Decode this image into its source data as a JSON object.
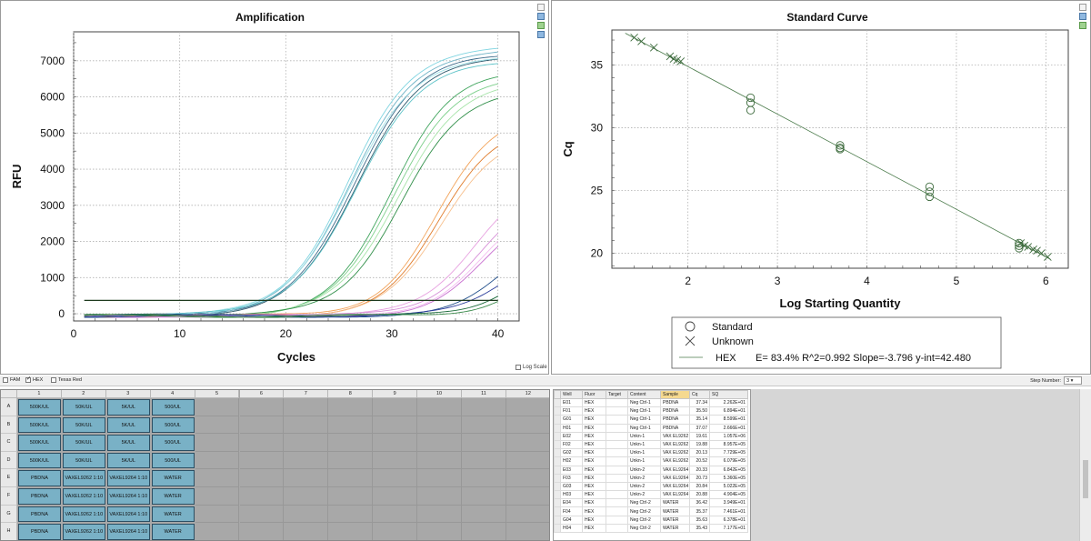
{
  "amplification": {
    "title": "Amplification",
    "xlabel": "Cycles",
    "ylabel": "RFU",
    "log_scale_label": "Log Scale",
    "threshold": 370
  },
  "standard_curve": {
    "title": "Standard Curve",
    "xlabel": "Log Starting Quantity",
    "ylabel": "Cq",
    "legend": {
      "standard": "Standard",
      "unknown": "Unknown",
      "fluor": "HEX",
      "stats": "E= 83.4% R^2=0.992 Slope=-3.796 y-int=42.480"
    }
  },
  "chart_data": [
    {
      "type": "line",
      "title": "Amplification",
      "xlabel": "Cycles",
      "ylabel": "RFU",
      "xlim": [
        0,
        42
      ],
      "ylim": [
        -200,
        7800
      ],
      "xticks": [
        0,
        10,
        20,
        30,
        40
      ],
      "yticks": [
        0,
        1000,
        2000,
        3000,
        4000,
        5000,
        6000,
        7000
      ],
      "grid": true,
      "x_range": [
        1,
        40
      ],
      "threshold": 370,
      "series": [
        {
          "color": "#3d6b8a",
          "plateau": 7300,
          "midpoint": 26.5,
          "slope": 0.32
        },
        {
          "color": "#2e5a6e",
          "plateau": 7250,
          "midpoint": 26.8,
          "slope": 0.32
        },
        {
          "color": "#6fb3c6",
          "plateau": 7400,
          "midpoint": 26.2,
          "slope": 0.33
        },
        {
          "color": "#7fd4e0",
          "plateau": 7450,
          "midpoint": 25.9,
          "slope": 0.34
        },
        {
          "color": "#9fe0e6",
          "plateau": 7150,
          "midpoint": 26.0,
          "slope": 0.33
        },
        {
          "color": "#5ec3c8",
          "plateau": 7050,
          "midpoint": 26.6,
          "slope": 0.32
        },
        {
          "color": "#3fa45c",
          "plateau": 6850,
          "midpoint": 30.0,
          "slope": 0.34
        },
        {
          "color": "#7ccf8a",
          "plateau": 6700,
          "midpoint": 30.3,
          "slope": 0.34
        },
        {
          "color": "#a6e3a8",
          "plateau": 6550,
          "midpoint": 30.6,
          "slope": 0.34
        },
        {
          "color": "#2f8e48",
          "plateau": 6250,
          "midpoint": 30.8,
          "slope": 0.35
        },
        {
          "color": "#f2a35a",
          "plateau": 5600,
          "midpoint": 34.2,
          "slope": 0.36
        },
        {
          "color": "#e07b2a",
          "plateau": 5300,
          "midpoint": 34.5,
          "slope": 0.36
        },
        {
          "color": "#f7c08e",
          "plateau": 5100,
          "midpoint": 34.8,
          "slope": 0.36
        },
        {
          "color": "#e7a0e0",
          "plateau": 3900,
          "midpoint": 37.8,
          "slope": 0.38
        },
        {
          "color": "#d78fd8",
          "plateau": 3500,
          "midpoint": 38.2,
          "slope": 0.38
        },
        {
          "color": "#f3bdf0",
          "plateau": 3200,
          "midpoint": 38.4,
          "slope": 0.38
        },
        {
          "color": "#c86fd0",
          "plateau": 3000,
          "midpoint": 38.6,
          "slope": 0.38
        },
        {
          "color": "#1f4e8a",
          "plateau": 2500,
          "midpoint": 40.8,
          "slope": 0.4
        },
        {
          "color": "#2a3c9a",
          "plateau": 2100,
          "midpoint": 41.1,
          "slope": 0.4
        },
        {
          "color": "#1b6b3a",
          "plateau": 1900,
          "midpoint": 42.0,
          "slope": 0.42
        },
        {
          "color": "#3a8a4a",
          "plateau": 1600,
          "midpoint": 42.3,
          "slope": 0.42
        }
      ]
    },
    {
      "type": "scatter",
      "title": "Standard Curve",
      "xlabel": "Log Starting Quantity",
      "ylabel": "Cq",
      "xlim": [
        1.15,
        6.25
      ],
      "ylim": [
        18.8,
        37.8
      ],
      "xticks": [
        2,
        3,
        4,
        5,
        6
      ],
      "yticks": [
        20,
        25,
        30,
        35
      ],
      "grid": true,
      "fit": {
        "slope": -3.796,
        "intercept": 42.48,
        "x_range": [
          1.3,
          6.05
        ]
      },
      "standards": [
        {
          "x": 2.7,
          "y": 32.4
        },
        {
          "x": 2.7,
          "y": 32.0
        },
        {
          "x": 2.7,
          "y": 31.4
        },
        {
          "x": 3.7,
          "y": 28.6
        },
        {
          "x": 3.7,
          "y": 28.4
        },
        {
          "x": 3.7,
          "y": 28.3
        },
        {
          "x": 4.7,
          "y": 25.3
        },
        {
          "x": 4.7,
          "y": 24.9
        },
        {
          "x": 4.7,
          "y": 24.5
        },
        {
          "x": 5.7,
          "y": 20.8
        },
        {
          "x": 5.7,
          "y": 20.6
        },
        {
          "x": 5.7,
          "y": 20.4
        }
      ],
      "unknowns": [
        {
          "x": 1.4,
          "y": 37.2
        },
        {
          "x": 1.48,
          "y": 36.9
        },
        {
          "x": 1.62,
          "y": 36.4
        },
        {
          "x": 1.8,
          "y": 35.7
        },
        {
          "x": 1.84,
          "y": 35.5
        },
        {
          "x": 1.88,
          "y": 35.4
        },
        {
          "x": 1.92,
          "y": 35.3
        },
        {
          "x": 5.72,
          "y": 20.8
        },
        {
          "x": 5.76,
          "y": 20.6
        },
        {
          "x": 5.8,
          "y": 20.5
        },
        {
          "x": 5.86,
          "y": 20.3
        },
        {
          "x": 5.9,
          "y": 20.2
        },
        {
          "x": 5.95,
          "y": 20.0
        },
        {
          "x": 6.02,
          "y": 19.7
        }
      ]
    }
  ],
  "fluor_bar": {
    "fam": "FAM",
    "hex": "HEX",
    "texas_red": "Texas Red",
    "step_label": "Step Number:",
    "step_value": "3"
  },
  "plate": {
    "columns": [
      "1",
      "2",
      "3",
      "4",
      "5",
      "6",
      "7",
      "8",
      "9",
      "10",
      "11",
      "12"
    ],
    "rows": [
      "A",
      "B",
      "C",
      "D",
      "E",
      "F",
      "G",
      "H"
    ],
    "wells": [
      [
        "500K/UL",
        "50K/UL",
        "5K/UL",
        "500/UL"
      ],
      [
        "500K/UL",
        "50K/UL",
        "5K/UL",
        "500/UL"
      ],
      [
        "500K/UL",
        "50K/UL",
        "5K/UL",
        "500/UL"
      ],
      [
        "500K/UL",
        "50K/UL",
        "5K/UL",
        "500/UL"
      ],
      [
        "PBDNA",
        "VAXEL9262 1:10",
        "VAXEL9264 1:10",
        "WATER"
      ],
      [
        "PBDNA",
        "VAXEL9262 1:10",
        "VAXEL9264 1:10",
        "WATER"
      ],
      [
        "PBDNA",
        "VAXEL9262 1:10",
        "VAXEL9264 1:10",
        "WATER"
      ],
      [
        "PBDNA",
        "VAXEL9262 1:10",
        "VAXEL9264 1:10",
        "WATER"
      ]
    ]
  },
  "results": {
    "headers": [
      "Well",
      "Fluor",
      "Target",
      "Content",
      "Sample",
      "Cq",
      "SQ"
    ],
    "rows": [
      [
        "E01",
        "HEX",
        "",
        "Neg Ctrl-1",
        "PBDNA",
        "37.34",
        "2.262E+01"
      ],
      [
        "F01",
        "HEX",
        "",
        "Neg Ctrl-1",
        "PBDNA",
        "35.50",
        "6.894E+01"
      ],
      [
        "G01",
        "HEX",
        "",
        "Neg Ctrl-1",
        "PBDNA",
        "35.14",
        "8.599E+01"
      ],
      [
        "H01",
        "HEX",
        "",
        "Neg Ctrl-1",
        "PBDNA",
        "37.07",
        "2.666E+01"
      ],
      [
        "E02",
        "HEX",
        "",
        "Unkn-1",
        "VAX EL9262",
        "19.61",
        "1.057E+06"
      ],
      [
        "F02",
        "HEX",
        "",
        "Unkn-1",
        "VAX EL9262",
        "19.88",
        "8.957E+05"
      ],
      [
        "G02",
        "HEX",
        "",
        "Unkn-1",
        "VAX EL9262",
        "20.13",
        "7.729E+05"
      ],
      [
        "H02",
        "HEX",
        "",
        "Unkn-1",
        "VAX EL9262",
        "20.52",
        "6.079E+05"
      ],
      [
        "E03",
        "HEX",
        "",
        "Unkn-2",
        "VAX EL9264",
        "20.33",
        "6.842E+05"
      ],
      [
        "F03",
        "HEX",
        "",
        "Unkn-2",
        "VAX EL9264",
        "20.73",
        "5.360E+05"
      ],
      [
        "G03",
        "HEX",
        "",
        "Unkn-2",
        "VAX EL9264",
        "20.84",
        "5.022E+05"
      ],
      [
        "H03",
        "HEX",
        "",
        "Unkn-2",
        "VAX EL9264",
        "20.88",
        "4.904E+05"
      ],
      [
        "E04",
        "HEX",
        "",
        "Neg Ctrl-2",
        "WATER",
        "36.42",
        "3.949E+01"
      ],
      [
        "F04",
        "HEX",
        "",
        "Neg Ctrl-2",
        "WATER",
        "35.37",
        "7.461E+01"
      ],
      [
        "G04",
        "HEX",
        "",
        "Neg Ctrl-2",
        "WATER",
        "35.63",
        "6.378E+01"
      ],
      [
        "H04",
        "HEX",
        "",
        "Neg Ctrl-2",
        "WATER",
        "35.43",
        "7.177E+01"
      ]
    ]
  }
}
